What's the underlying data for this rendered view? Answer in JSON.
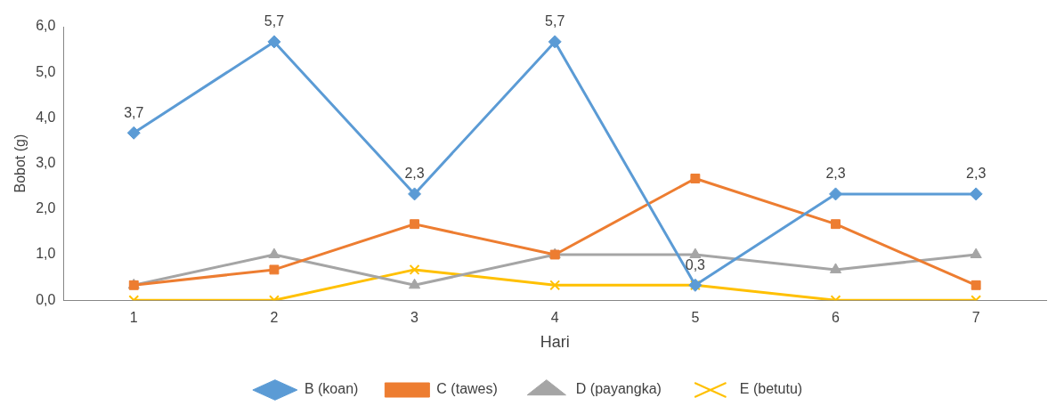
{
  "chart_data": {
    "type": "line",
    "xlabel": "Hari",
    "ylabel": "Bobot (g)",
    "categories": [
      "1",
      "2",
      "3",
      "4",
      "5",
      "6",
      "7"
    ],
    "ylim": [
      0,
      6
    ],
    "yticks": [
      {
        "value": 0,
        "label": "0,0"
      },
      {
        "value": 1,
        "label": "1,0"
      },
      {
        "value": 2,
        "label": "2,0"
      },
      {
        "value": 3,
        "label": "3,0"
      },
      {
        "value": 4,
        "label": "4,0"
      },
      {
        "value": 5,
        "label": "5,0"
      },
      {
        "value": 6,
        "label": "6,0"
      }
    ],
    "grid": false,
    "legend": "bottom",
    "line_style": "solid",
    "series": [
      {
        "name": "B (koan)",
        "color": "#5b9bd5",
        "marker": "diamond",
        "values": [
          3.67,
          5.67,
          2.33,
          5.67,
          0.33,
          2.33,
          2.33
        ],
        "value_labels": [
          "3,7",
          "5,7",
          "2,3",
          "5,7",
          "0,3",
          "2,3",
          "2,3"
        ]
      },
      {
        "name": "C (tawes)",
        "color": "#ed7d31",
        "marker": "square",
        "values": [
          0.33,
          0.67,
          1.67,
          1.0,
          2.67,
          1.67,
          0.33
        ]
      },
      {
        "name": "D (payangka)",
        "color": "#a5a5a5",
        "marker": "triangle",
        "values": [
          0.33,
          1.0,
          0.33,
          1.0,
          1.0,
          0.67,
          1.0
        ]
      },
      {
        "name": "E (betutu)",
        "color": "#ffc000",
        "marker": "cross",
        "values": [
          0,
          0,
          0.67,
          0.33,
          0.33,
          0,
          0
        ]
      }
    ]
  }
}
